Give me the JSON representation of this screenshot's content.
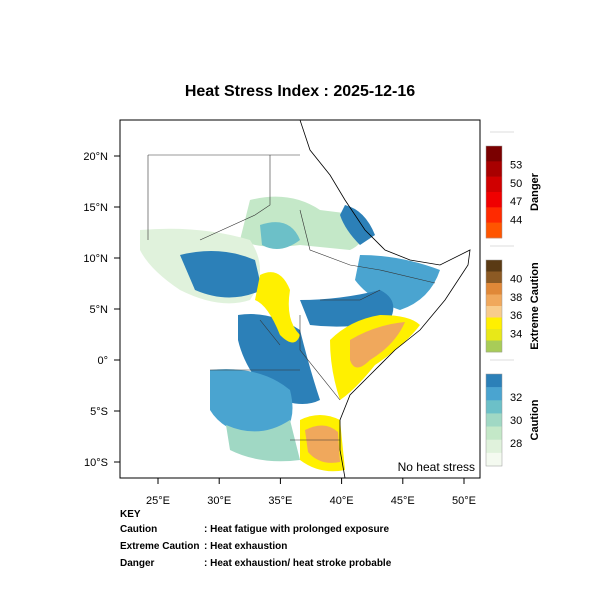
{
  "title": "Heat Stress Index : 2025-12-16",
  "map": {
    "lon_ticks": [
      {
        "value": 25,
        "label": "25°E"
      },
      {
        "value": 30,
        "label": "30°E"
      },
      {
        "value": 35,
        "label": "35°E"
      },
      {
        "value": 40,
        "label": "40°E"
      },
      {
        "value": 45,
        "label": "45°E"
      },
      {
        "value": 50,
        "label": "50°E"
      }
    ],
    "lat_ticks": [
      {
        "value": 20,
        "label": "20°N"
      },
      {
        "value": 15,
        "label": "15°N"
      },
      {
        "value": 10,
        "label": "10°N"
      },
      {
        "value": 5,
        "label": "5°N"
      },
      {
        "value": 0,
        "label": "0°"
      },
      {
        "value": -5,
        "label": "5°S"
      },
      {
        "value": -10,
        "label": "10°S"
      }
    ],
    "note": "No heat stress"
  },
  "legend": [
    {
      "name": "Danger",
      "ticks": [
        53,
        50,
        47,
        44
      ],
      "colors": [
        "#7a0000",
        "#a80000",
        "#d00000",
        "#f00000",
        "#ff2a00",
        "#ff5500"
      ]
    },
    {
      "name": "Extreme Caution",
      "ticks": [
        40,
        38,
        36,
        34
      ],
      "colors": [
        "#5a3a14",
        "#8c5a24",
        "#e08838",
        "#f0a85c",
        "#f8cc8c",
        "#fff000",
        "#e8e818",
        "#a8cc58"
      ]
    },
    {
      "name": "Caution",
      "ticks": [
        32,
        30,
        28
      ],
      "colors": [
        "#2c80b8",
        "#4aa4d0",
        "#6cc0c8",
        "#a0d8c4",
        "#c4e8c8",
        "#e0f2dc",
        "#f4faf0"
      ]
    }
  ],
  "key": {
    "heading": "KEY",
    "rows": [
      [
        "Caution",
        ": Heat fatigue with prolonged exposure"
      ],
      [
        "Extreme Caution",
        ": Heat exhaustion"
      ],
      [
        "Danger",
        ": Heat exhaustion/ heat stroke probable"
      ]
    ]
  }
}
